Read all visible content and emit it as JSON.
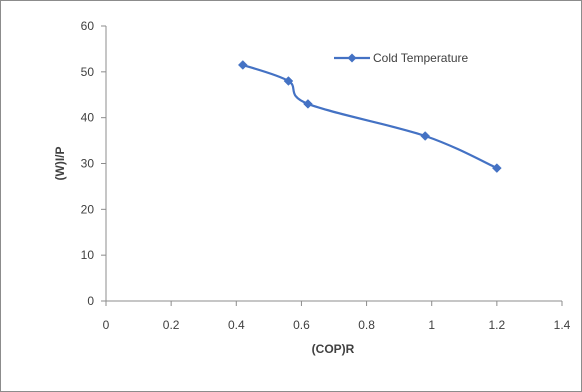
{
  "chart_data": {
    "type": "line",
    "title": "",
    "xlabel": "(COP)R",
    "ylabel": "(W)I/P",
    "xlim": [
      0,
      1.4
    ],
    "ylim": [
      0,
      60
    ],
    "xticks": [
      0,
      0.2,
      0.4,
      0.6,
      0.8,
      1,
      1.2,
      1.4
    ],
    "yticks": [
      0,
      10,
      20,
      30,
      40,
      50,
      60
    ],
    "xtick_labels": [
      "0",
      "0.2",
      "0.4",
      "0.6",
      "0.8",
      "1",
      "1.2",
      "1.4"
    ],
    "ytick_labels": [
      "0",
      "10",
      "20",
      "30",
      "40",
      "50",
      "60"
    ],
    "grid": false,
    "legend_position": "top-right",
    "line_color": "#4472C4",
    "smooth": true,
    "series": [
      {
        "name": "Cold Temperature",
        "x": [
          0.42,
          0.56,
          0.62,
          0.98,
          1.2
        ],
        "y": [
          51.5,
          48,
          43,
          36,
          29
        ]
      }
    ]
  }
}
